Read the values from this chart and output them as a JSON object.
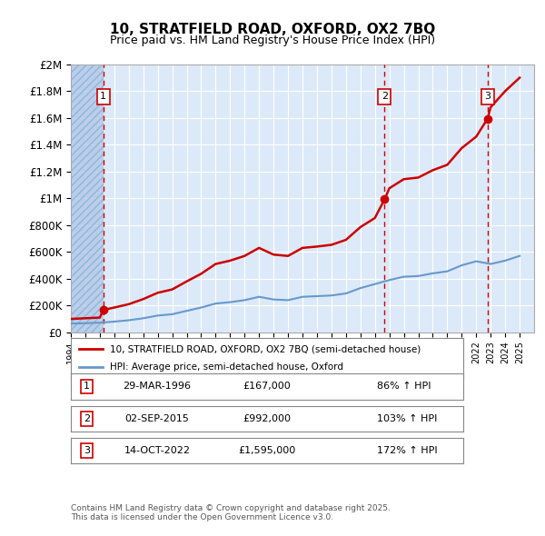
{
  "title": "10, STRATFIELD ROAD, OXFORD, OX2 7BQ",
  "subtitle": "Price paid vs. HM Land Registry's House Price Index (HPI)",
  "legend_line1": "10, STRATFIELD ROAD, OXFORD, OX2 7BQ (semi-detached house)",
  "legend_line2": "HPI: Average price, semi-detached house, Oxford",
  "footer": "Contains HM Land Registry data © Crown copyright and database right 2025.\nThis data is licensed under the Open Government Licence v3.0.",
  "xmin": 1994.0,
  "xmax": 2026.0,
  "ymin": 0,
  "ymax": 2000000,
  "yticks": [
    0,
    200000,
    400000,
    600000,
    800000,
    1000000,
    1200000,
    1400000,
    1600000,
    1800000,
    2000000
  ],
  "ytick_labels": [
    "£0",
    "£200K",
    "£400K",
    "£600K",
    "£800K",
    "£1M",
    "£1.2M",
    "£1.4M",
    "£1.6M",
    "£1.8M",
    "£2M"
  ],
  "bg_color": "#dce9f8",
  "hatch_color": "#b0c8e8",
  "grid_color": "#ffffff",
  "red_color": "#cc0000",
  "blue_color": "#6699cc",
  "purchases": [
    {
      "num": 1,
      "year": 1996.24,
      "price": 167000,
      "date": "29-MAR-1996",
      "pct": "86% ↑ HPI"
    },
    {
      "num": 2,
      "year": 2015.67,
      "price": 992000,
      "date": "02-SEP-2015",
      "pct": "103% ↑ HPI"
    },
    {
      "num": 3,
      "year": 2022.79,
      "price": 1595000,
      "date": "14-OCT-2022",
      "pct": "172% ↑ HPI"
    }
  ],
  "hpi_line": {
    "years": [
      1994,
      1995,
      1996,
      1997,
      1998,
      1999,
      2000,
      2001,
      2002,
      2003,
      2004,
      2005,
      2006,
      2007,
      2008,
      2009,
      2010,
      2011,
      2012,
      2013,
      2014,
      2015,
      2016,
      2017,
      2018,
      2019,
      2020,
      2021,
      2022,
      2023,
      2024,
      2025
    ],
    "values": [
      65000,
      68000,
      72000,
      80000,
      90000,
      105000,
      125000,
      135000,
      160000,
      185000,
      215000,
      225000,
      240000,
      265000,
      245000,
      240000,
      265000,
      270000,
      275000,
      290000,
      330000,
      360000,
      390000,
      415000,
      420000,
      440000,
      455000,
      500000,
      530000,
      510000,
      535000,
      570000
    ]
  },
  "price_line": {
    "years": [
      1994,
      1995,
      1996,
      1996.24,
      1997,
      1998,
      1999,
      2000,
      2001,
      2002,
      2003,
      2004,
      2005,
      2006,
      2007,
      2008,
      2009,
      2010,
      2011,
      2012,
      2013,
      2014,
      2015,
      2015.67,
      2016,
      2017,
      2018,
      2019,
      2020,
      2021,
      2022,
      2022.79,
      2023,
      2024,
      2025
    ],
    "values": [
      100000,
      105000,
      110000,
      167000,
      185000,
      210000,
      248000,
      295000,
      320000,
      380000,
      437000,
      510000,
      535000,
      570000,
      630000,
      580000,
      570000,
      630000,
      640000,
      653000,
      690000,
      785000,
      853000,
      992000,
      1075000,
      1143000,
      1155000,
      1210000,
      1250000,
      1375000,
      1460000,
      1595000,
      1680000,
      1800000,
      1900000
    ]
  }
}
